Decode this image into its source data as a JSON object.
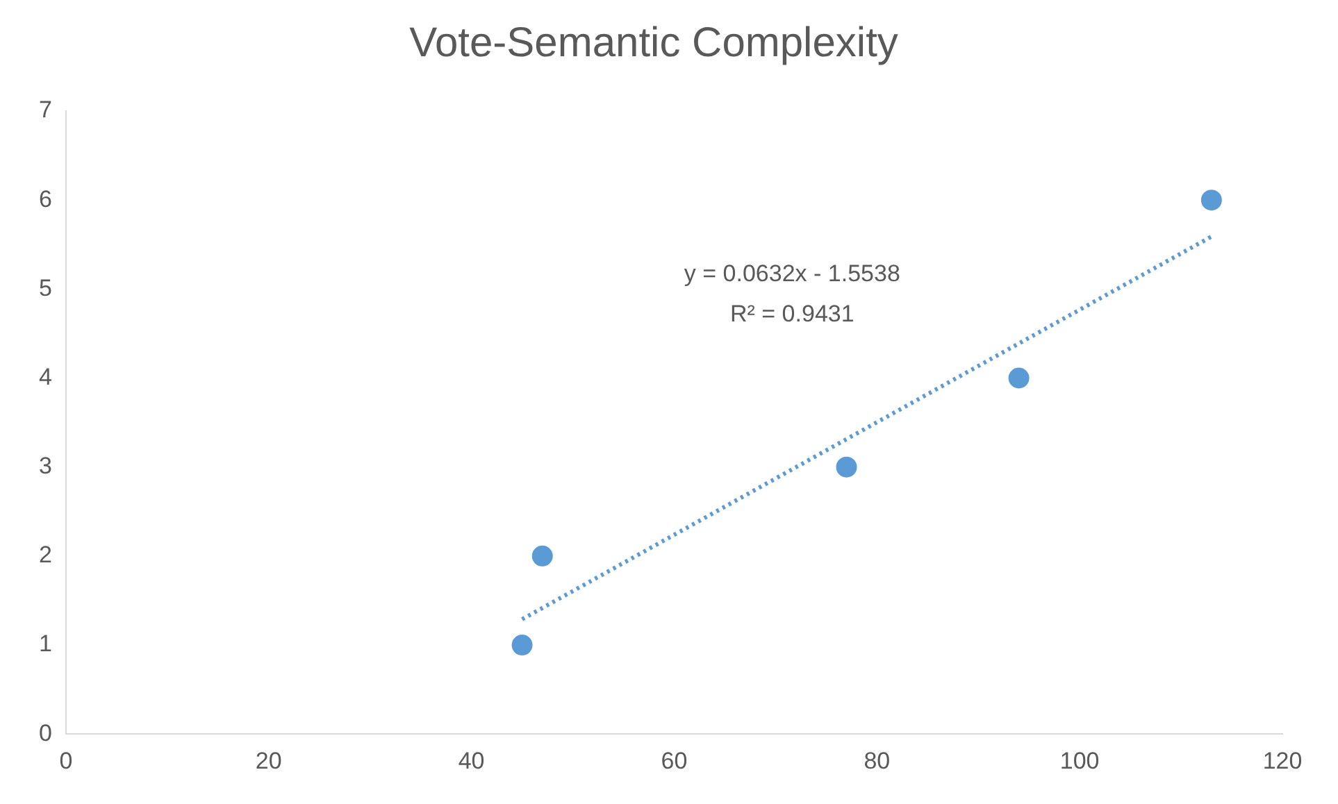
{
  "chart_data": {
    "type": "scatter",
    "title": "Vote-Semantic Complexity",
    "series": [
      {
        "type": "scatter",
        "color": "#5b9bd5",
        "marker": "circle",
        "x": [
          45,
          47,
          77,
          94,
          113
        ],
        "values": [
          1,
          2,
          3,
          4,
          6
        ]
      },
      {
        "type": "line",
        "color": "#5b9bd5",
        "marker": "none",
        "line_style": "dotted",
        "x": [
          45,
          113
        ],
        "values": [
          1.29,
          5.59
        ]
      }
    ],
    "xlim": [
      0,
      120
    ],
    "xticks": [
      0,
      20,
      40,
      60,
      80,
      100,
      120
    ],
    "ylim": [
      0,
      7
    ],
    "yticks": [
      0,
      1,
      2,
      3,
      4,
      5,
      6,
      7
    ],
    "grid": false,
    "legend": false,
    "annotations": [
      "y = 0.0632x - 1.5538",
      "R² = 0.9431"
    ]
  }
}
